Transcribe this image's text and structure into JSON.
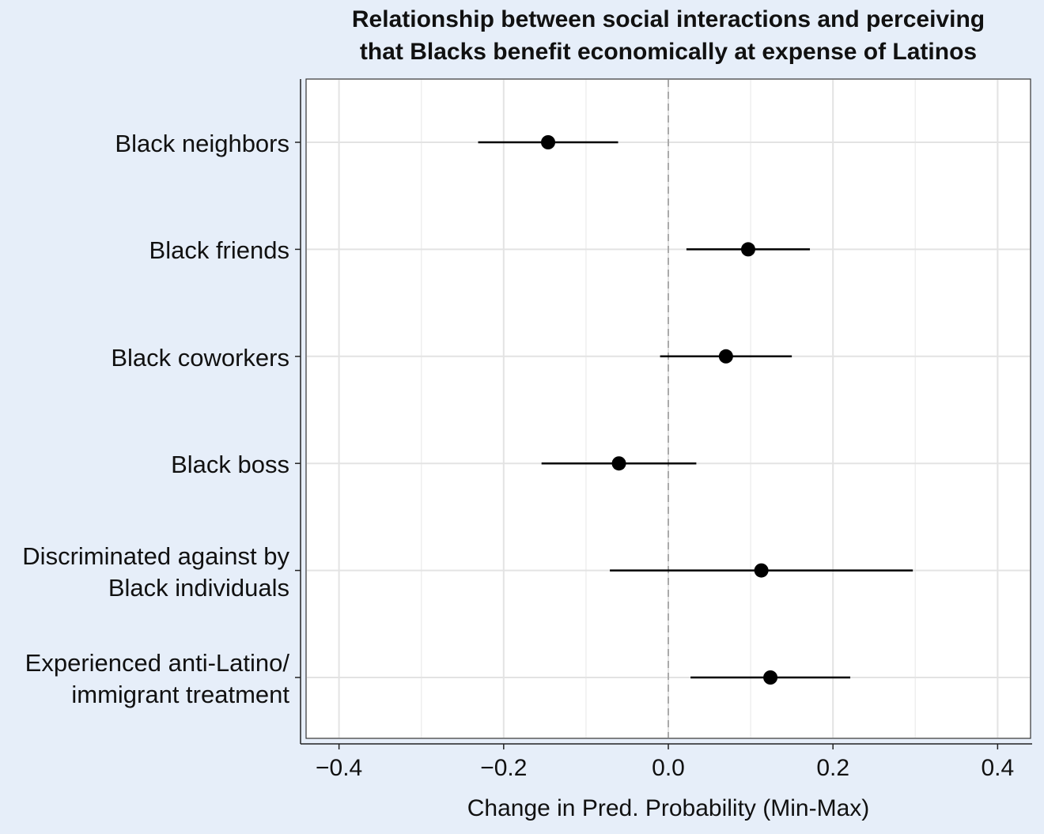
{
  "chart_data": {
    "type": "coefficient-plot",
    "title_lines": [
      "Relationship between social interactions and perceiving",
      "that Blacks benefit economically at expense of Latinos"
    ],
    "xlabel": "Change in Pred. Probability (Min-Max)",
    "xlim": [
      -0.44,
      0.44
    ],
    "xticks": [
      -0.4,
      -0.2,
      0.0,
      0.2,
      0.4
    ],
    "xtick_labels": [
      "−0.4",
      "−0.2",
      "0.0",
      "0.2",
      "0.4"
    ],
    "reference_line": 0.0,
    "grid": true,
    "series": [
      {
        "label_lines": [
          "Black neighbors"
        ],
        "estimate": -0.146,
        "lower": -0.231,
        "upper": -0.061
      },
      {
        "label_lines": [
          "Black friends"
        ],
        "estimate": 0.097,
        "lower": 0.022,
        "upper": 0.172
      },
      {
        "label_lines": [
          "Black coworkers"
        ],
        "estimate": 0.07,
        "lower": -0.01,
        "upper": 0.15
      },
      {
        "label_lines": [
          "Black boss"
        ],
        "estimate": -0.06,
        "lower": -0.154,
        "upper": 0.034
      },
      {
        "label_lines": [
          "Discriminated against by",
          "Black individuals"
        ],
        "estimate": 0.113,
        "lower": -0.071,
        "upper": 0.297
      },
      {
        "label_lines": [
          "Experienced anti-Latino/",
          "immigrant treatment"
        ],
        "estimate": 0.124,
        "lower": 0.027,
        "upper": 0.221
      }
    ]
  }
}
